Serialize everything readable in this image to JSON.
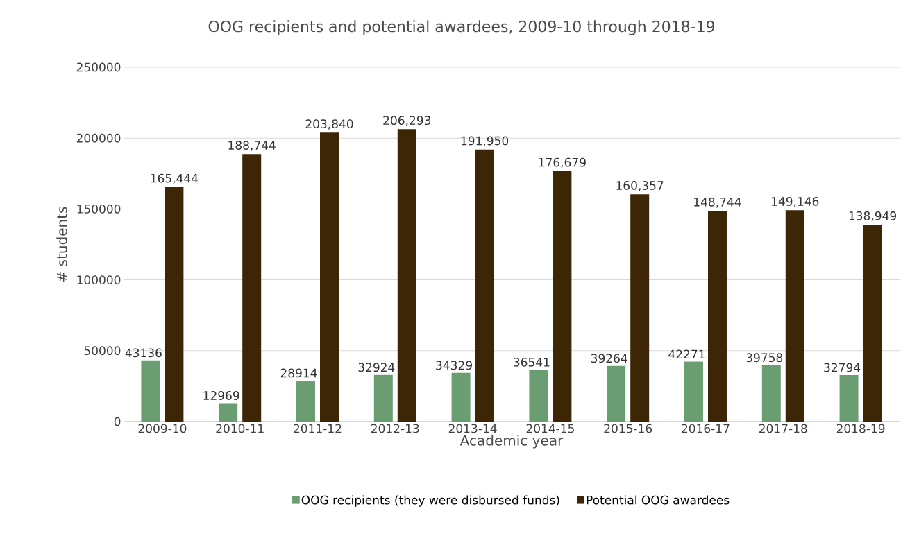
{
  "chart_data": {
    "type": "bar",
    "title": "OOG recipients and potential awardees, 2009-10 through 2018-19",
    "xlabel": "Academic year",
    "ylabel": "# students",
    "categories": [
      "2009-10",
      "2010-11",
      "2011-12",
      "2012-13",
      "2013-14",
      "2014-15",
      "2015-16",
      "2016-17",
      "2017-18",
      "2018-19"
    ],
    "series": [
      {
        "name": "OOG recipients (they were disbursed funds)",
        "color": "#6a9e72",
        "values": [
          43136,
          12969,
          28914,
          32924,
          34329,
          36541,
          39264,
          42271,
          39758,
          32794
        ],
        "value_labels": [
          "43136",
          "12969",
          "28914",
          "32924",
          "34329",
          "36541",
          "39264",
          "42271",
          "39758",
          "32794"
        ]
      },
      {
        "name": "Potential OOG awardees",
        "color": "#3d2605",
        "values": [
          165444,
          188744,
          203840,
          206293,
          191950,
          176679,
          160357,
          148744,
          149146,
          138949
        ],
        "value_labels": [
          "165,444",
          "188,744",
          "203,840",
          "206,293",
          "191,950",
          "176,679",
          "160,357",
          "148,744",
          "149,146",
          "138,949"
        ]
      }
    ],
    "ylim": [
      0,
      250000
    ],
    "yticks": [
      0,
      50000,
      100000,
      150000,
      200000,
      250000
    ],
    "grid": "y",
    "legend": "bottom"
  }
}
